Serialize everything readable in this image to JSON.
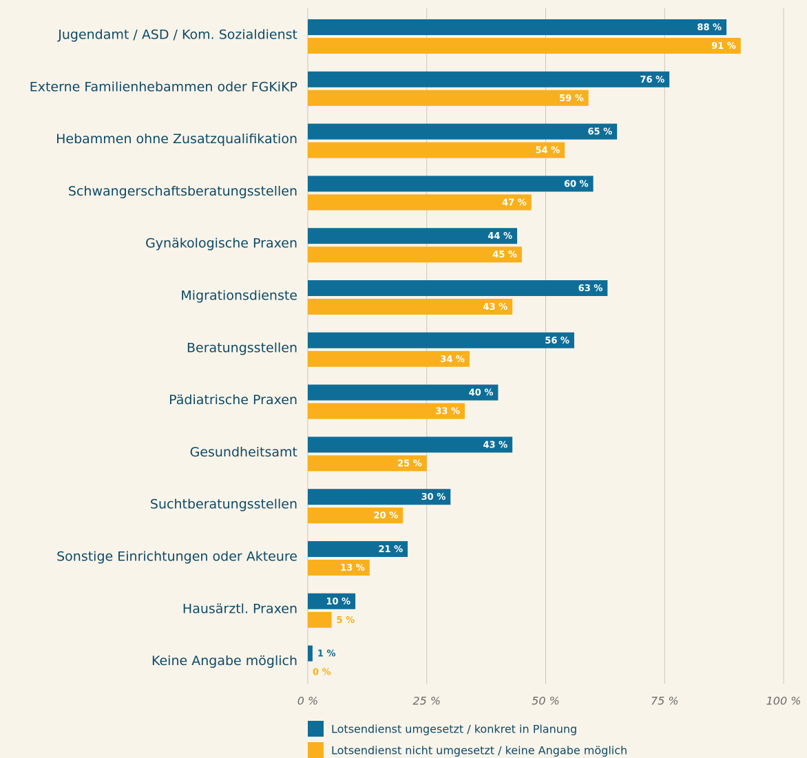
{
  "chart_data": {
    "type": "hbar",
    "categories": [
      "Jugendamt / ASD / Kom. Sozialdienst",
      "Externe Familienhebammen oder FGKiKP",
      "Hebammen ohne Zusatzqualifikation",
      "Schwangerschaftsberatungsstellen",
      "Gynäkologische Praxen",
      "Migrationsdienste",
      "Beratungsstellen",
      "Pädiatrische Praxen",
      "Gesundheitsamt",
      "Suchtberatungsstellen",
      "Sonstige Einrichtungen oder Akteure",
      "Hausärztl. Praxen",
      "Keine Angabe möglich"
    ],
    "series": [
      {
        "name": "Lotsendienst umgesetzt / konkret in Planung",
        "color": "#0f6e98",
        "values": [
          88,
          76,
          65,
          60,
          44,
          63,
          56,
          40,
          43,
          30,
          21,
          10,
          1
        ],
        "value_labels": [
          "88 %",
          "76 %",
          "65 %",
          "60 %",
          "44 %",
          "63 %",
          "56 %",
          "40 %",
          "43 %",
          "30 %",
          "21 %",
          "10 %",
          "1 %"
        ]
      },
      {
        "name": "Lotsendienst nicht umgesetzt / keine Angabe möglich",
        "color": "#f9b01c",
        "values": [
          91,
          59,
          54,
          47,
          45,
          43,
          34,
          33,
          25,
          20,
          13,
          5,
          0
        ],
        "value_labels": [
          "91 %",
          "59 %",
          "54 %",
          "47 %",
          "45 %",
          "43 %",
          "34 %",
          "33 %",
          "25 %",
          "20 %",
          "13 %",
          "5 %",
          "0 %"
        ]
      }
    ],
    "xlim": [
      0,
      100
    ],
    "xticks": [
      {
        "value": 0,
        "label": "0 %"
      },
      {
        "value": 25,
        "label": "25 %"
      },
      {
        "value": 50,
        "label": "50 %"
      },
      {
        "value": 75,
        "label": "75 %"
      },
      {
        "value": 100,
        "label": "100 %"
      }
    ],
    "grid": true
  }
}
